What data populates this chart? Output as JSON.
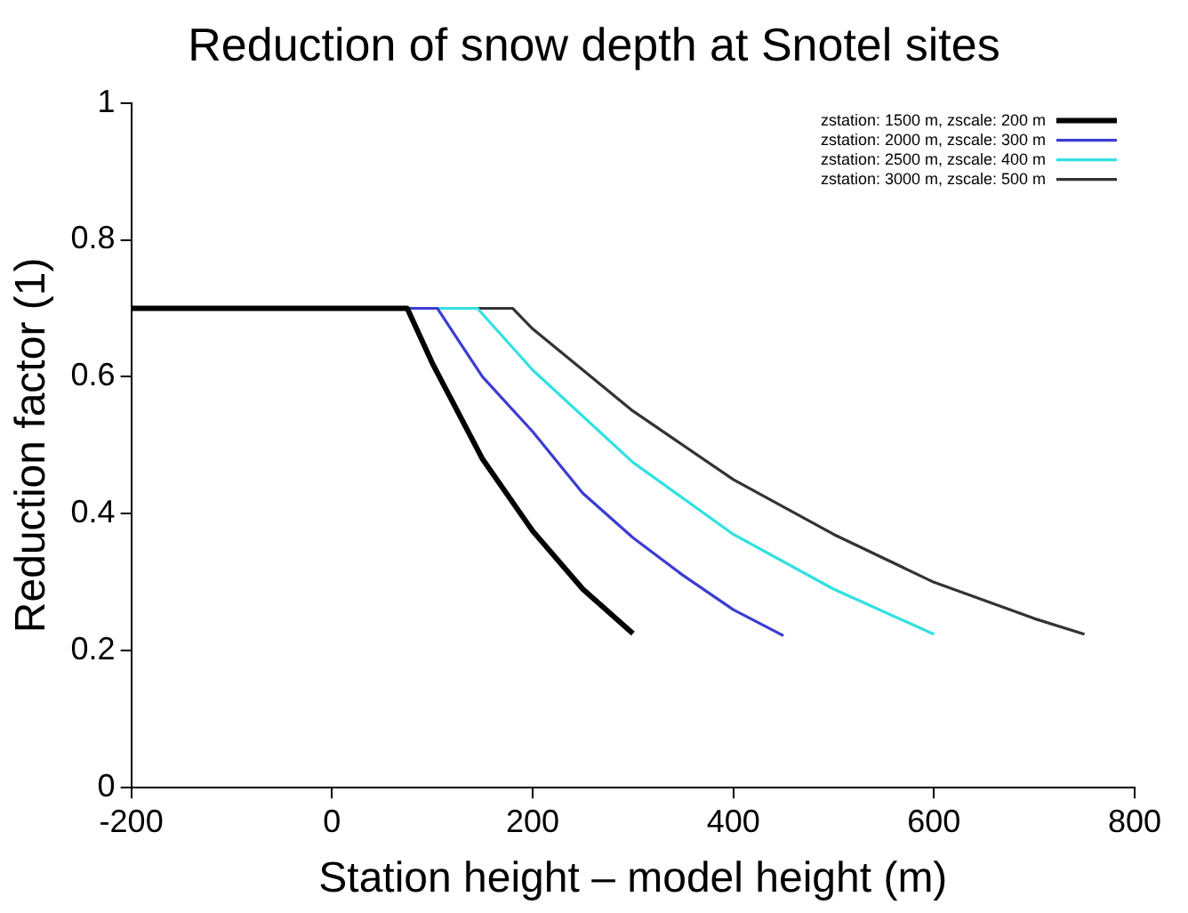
{
  "chart_data": {
    "type": "line",
    "title": "Reduction of snow depth at Snotel sites",
    "xlabel": "Station height – model height (m)",
    "ylabel": "Reduction factor (1)",
    "xlim": [
      -200,
      800
    ],
    "xticks": [
      -200,
      0,
      200,
      400,
      600,
      800
    ],
    "ylim": [
      0,
      1
    ],
    "yticks": [
      0,
      0.2,
      0.4,
      0.6,
      0.8,
      1
    ],
    "grid": false,
    "legend": "top right",
    "marker": "none",
    "line_style": "solid",
    "series": [
      {
        "name": "zstation: 1500 m, zscale: 200 m",
        "color": "#000000",
        "x": [
          -200,
          0,
          75,
          100,
          150,
          200,
          250,
          300
        ],
        "values": [
          0.7,
          0.7,
          0.7,
          0.62,
          0.48,
          0.375,
          0.29,
          0.225
        ]
      },
      {
        "name": "zstation: 2000 m, zscale: 300 m",
        "color": "#3c3cd2",
        "x": [
          -200,
          0,
          105,
          150,
          200,
          250,
          300,
          350,
          400,
          450
        ],
        "values": [
          0.7,
          0.7,
          0.7,
          0.6,
          0.52,
          0.43,
          0.365,
          0.31,
          0.26,
          0.222
        ]
      },
      {
        "name": "zstation: 2500 m, zscale: 400 m",
        "color": "#33e0e0",
        "x": [
          -200,
          0,
          145,
          200,
          300,
          400,
          500,
          600
        ],
        "values": [
          0.7,
          0.7,
          0.7,
          0.61,
          0.475,
          0.37,
          0.29,
          0.224
        ]
      },
      {
        "name": "zstation: 3000 m, zscale: 500 m",
        "color": "#333333",
        "x": [
          -200,
          0,
          180,
          200,
          300,
          400,
          500,
          600,
          700,
          750
        ],
        "values": [
          0.7,
          0.7,
          0.7,
          0.67,
          0.55,
          0.45,
          0.37,
          0.3,
          0.247,
          0.224
        ]
      }
    ]
  }
}
